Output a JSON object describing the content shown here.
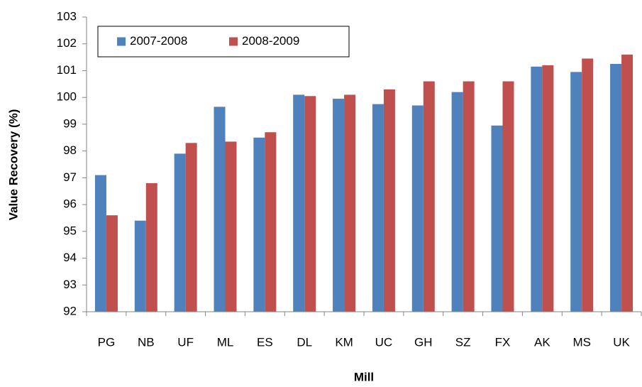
{
  "chart_data": {
    "type": "bar",
    "y_label": "Value Recovery (%)",
    "x_label": "Mill",
    "categories": [
      "PG",
      "NB",
      "UF",
      "ML",
      "ES",
      "DL",
      "KM",
      "UC",
      "GH",
      "SZ",
      "FX",
      "AK",
      "MS",
      "UK"
    ],
    "series": [
      {
        "name": "2007-2008",
        "color": "#4f81bd",
        "values": [
          97.1,
          95.4,
          97.9,
          99.65,
          98.5,
          100.1,
          99.95,
          99.75,
          99.7,
          100.2,
          98.95,
          101.15,
          100.95,
          101.25
        ]
      },
      {
        "name": "2008-2009",
        "color": "#c0504d",
        "values": [
          95.6,
          96.8,
          98.3,
          98.35,
          98.7,
          100.05,
          100.1,
          100.3,
          100.6,
          100.6,
          100.6,
          101.2,
          101.45,
          101.6
        ]
      }
    ],
    "ylim": [
      92,
      103
    ],
    "yticks": [
      92,
      93,
      94,
      95,
      96,
      97,
      98,
      99,
      100,
      101,
      102,
      103
    ],
    "grid": false,
    "legend": "top-left"
  }
}
